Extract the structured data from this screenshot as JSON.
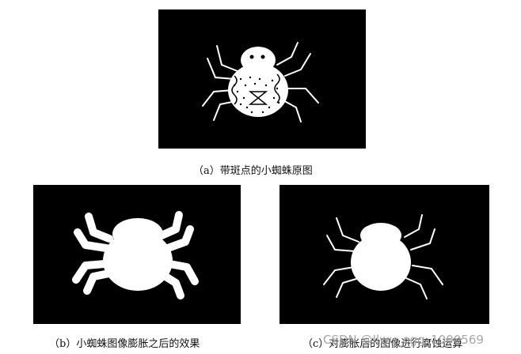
{
  "figure": {
    "captions": {
      "a": "（a）带斑点的小蜘蛛原图",
      "b": "（b）小蜘蛛图像膨胀之后的效果",
      "c": "（c）对膨胀后的图像进行腐蚀运算"
    },
    "watermark": "CSDN @Ilwu_ogg_1000569"
  },
  "colors": {
    "background": "#000000",
    "foreground": "#ffffff"
  }
}
